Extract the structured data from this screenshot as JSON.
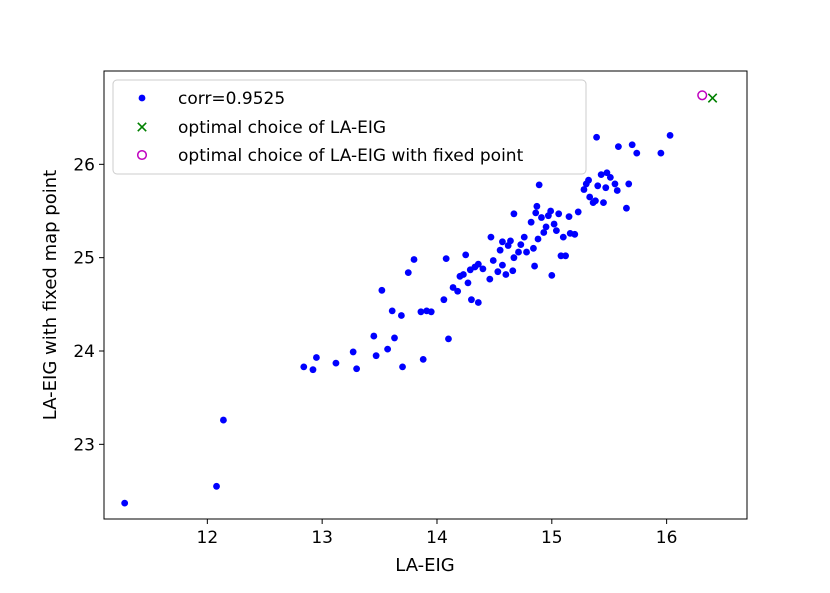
{
  "chart_data": {
    "type": "scatter",
    "title": "",
    "xlabel": "LA-EIG",
    "ylabel": "LA-EIG with fixed map point",
    "xlim": [
      11.1,
      16.7
    ],
    "ylim": [
      22.2,
      27.0
    ],
    "xticks": [
      12,
      13,
      14,
      15,
      16
    ],
    "yticks": [
      23,
      24,
      25,
      26
    ],
    "grid": false,
    "legend_position": "top-left",
    "series": [
      {
        "name": "corr=0.9525",
        "marker": "dot",
        "color": "#0000ff",
        "points": [
          [
            11.28,
            22.37
          ],
          [
            12.08,
            22.55
          ],
          [
            12.14,
            23.26
          ],
          [
            12.84,
            23.83
          ],
          [
            12.92,
            23.8
          ],
          [
            12.95,
            23.93
          ],
          [
            13.12,
            23.87
          ],
          [
            13.27,
            23.99
          ],
          [
            13.3,
            23.81
          ],
          [
            13.45,
            24.16
          ],
          [
            13.47,
            23.95
          ],
          [
            13.52,
            24.65
          ],
          [
            13.57,
            24.02
          ],
          [
            13.61,
            24.43
          ],
          [
            13.63,
            24.14
          ],
          [
            13.69,
            24.38
          ],
          [
            13.7,
            23.83
          ],
          [
            13.75,
            24.84
          ],
          [
            13.8,
            24.98
          ],
          [
            13.86,
            24.42
          ],
          [
            13.88,
            23.91
          ],
          [
            13.91,
            24.43
          ],
          [
            13.95,
            24.42
          ],
          [
            14.06,
            24.55
          ],
          [
            14.08,
            24.99
          ],
          [
            14.1,
            24.13
          ],
          [
            14.14,
            24.68
          ],
          [
            14.18,
            24.64
          ],
          [
            14.2,
            24.8
          ],
          [
            14.23,
            24.82
          ],
          [
            14.25,
            25.03
          ],
          [
            14.27,
            24.73
          ],
          [
            14.29,
            24.87
          ],
          [
            14.3,
            24.55
          ],
          [
            14.33,
            24.9
          ],
          [
            14.36,
            24.52
          ],
          [
            14.36,
            24.93
          ],
          [
            14.4,
            24.88
          ],
          [
            14.46,
            24.77
          ],
          [
            14.47,
            25.22
          ],
          [
            14.49,
            24.97
          ],
          [
            14.53,
            24.85
          ],
          [
            14.55,
            25.08
          ],
          [
            14.57,
            25.17
          ],
          [
            14.57,
            24.92
          ],
          [
            14.6,
            24.82
          ],
          [
            14.62,
            25.13
          ],
          [
            14.64,
            25.18
          ],
          [
            14.66,
            24.86
          ],
          [
            14.67,
            25.0
          ],
          [
            14.67,
            25.47
          ],
          [
            14.71,
            25.06
          ],
          [
            14.73,
            25.14
          ],
          [
            14.76,
            25.22
          ],
          [
            14.78,
            25.06
          ],
          [
            14.82,
            25.38
          ],
          [
            14.84,
            25.1
          ],
          [
            14.85,
            24.91
          ],
          [
            14.86,
            25.48
          ],
          [
            14.87,
            25.55
          ],
          [
            14.88,
            25.2
          ],
          [
            14.89,
            25.78
          ],
          [
            14.91,
            25.43
          ],
          [
            14.93,
            25.27
          ],
          [
            14.95,
            25.33
          ],
          [
            14.97,
            25.45
          ],
          [
            14.99,
            25.5
          ],
          [
            15.0,
            24.81
          ],
          [
            15.02,
            25.36
          ],
          [
            15.04,
            25.29
          ],
          [
            15.06,
            25.47
          ],
          [
            15.08,
            25.02
          ],
          [
            15.1,
            25.22
          ],
          [
            15.12,
            25.02
          ],
          [
            15.15,
            25.44
          ],
          [
            15.16,
            25.26
          ],
          [
            15.2,
            25.25
          ],
          [
            15.23,
            25.49
          ],
          [
            15.28,
            25.73
          ],
          [
            15.3,
            25.79
          ],
          [
            15.32,
            25.83
          ],
          [
            15.33,
            25.65
          ],
          [
            15.36,
            25.59
          ],
          [
            15.38,
            25.61
          ],
          [
            15.39,
            26.29
          ],
          [
            15.4,
            25.77
          ],
          [
            15.43,
            25.89
          ],
          [
            15.45,
            25.59
          ],
          [
            15.47,
            25.75
          ],
          [
            15.48,
            25.91
          ],
          [
            15.51,
            25.86
          ],
          [
            15.55,
            25.79
          ],
          [
            15.57,
            25.72
          ],
          [
            15.58,
            26.19
          ],
          [
            15.65,
            25.53
          ],
          [
            15.67,
            25.79
          ],
          [
            15.7,
            26.21
          ],
          [
            15.74,
            26.12
          ],
          [
            15.95,
            26.12
          ],
          [
            16.03,
            26.31
          ]
        ]
      },
      {
        "name": "optimal choice of LA-EIG",
        "marker": "x",
        "color": "#008000",
        "points": [
          [
            16.4,
            26.71
          ]
        ]
      },
      {
        "name": "optimal choice of LA-EIG with fixed point",
        "marker": "circle",
        "color": "#bf00bf",
        "points": [
          [
            16.31,
            26.74
          ]
        ]
      }
    ]
  }
}
